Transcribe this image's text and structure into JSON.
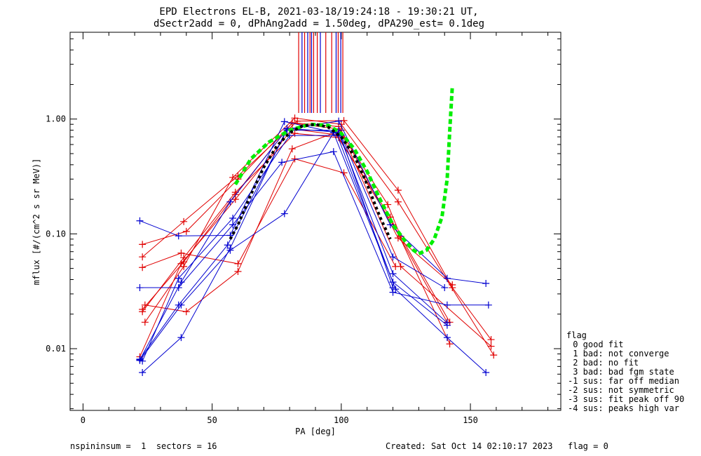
{
  "chart_data": {
    "type": "line",
    "title": "EPD Electrons EL-B, 2021-03-18/19:24:18 - 19:30:21 UT,",
    "subtitle": "dSectr2add = 0, dPhAng2add = 1.50deg, dPA290_est=   0.1deg",
    "xlabel": "PA [deg]",
    "ylabel": "mflux [#/(cm^2 s sr MeV)]",
    "xlim": [
      -5,
      185
    ],
    "ylim": [
      0.0029,
      5.7
    ],
    "yscale": "log",
    "x_ticks": [
      0,
      50,
      100,
      150
    ],
    "x_tick_labels": [
      "0",
      "50",
      "100",
      "150"
    ],
    "y_ticks": [
      0.01,
      0.1,
      1.0
    ],
    "y_tick_labels": [
      "0.01",
      "0.10",
      "1.00"
    ],
    "grid": false,
    "legend_title": "flag",
    "legend": [
      " 0 good fit",
      " 1 bad: not converge",
      " 2 bad: no fit",
      " 3 bad: bad fgm state",
      "-1 sus: far off median",
      "-2 sus: not symmetric",
      "-3 sus: fit peak off 90",
      "-4 sus: peaks high var"
    ],
    "colors": {
      "red": "#e00000",
      "blue": "#0000d0",
      "green": "#00ee00",
      "black": "#000000"
    },
    "series": [
      {
        "color": "#e00000",
        "points": [
          [
            23,
            0.081
          ],
          [
            40,
            0.105
          ],
          [
            60,
            0.3
          ],
          [
            81,
            0.92
          ],
          [
            99,
            0.82
          ],
          [
            118,
            0.18
          ],
          [
            123,
            0.095
          ],
          [
            142,
            0.017
          ]
        ]
      },
      {
        "color": "#e00000",
        "points": [
          [
            23,
            0.063
          ],
          [
            39,
            0.128
          ],
          [
            60,
            0.32
          ],
          [
            83,
            0.96
          ],
          [
            101,
            0.97
          ],
          [
            122,
            0.24
          ],
          [
            143,
            0.034
          ],
          [
            158,
            0.012
          ]
        ]
      },
      {
        "color": "#e00000",
        "points": [
          [
            22,
            0.0085
          ],
          [
            38,
            0.055
          ],
          [
            59,
            0.2
          ],
          [
            81,
            0.82
          ],
          [
            98,
            0.73
          ],
          [
            119,
            0.14
          ],
          [
            142,
            0.011
          ]
        ]
      },
      {
        "color": "#e00000",
        "points": [
          [
            23,
            0.021
          ],
          [
            39,
            0.062
          ],
          [
            59,
            0.23
          ],
          [
            82,
            0.75
          ],
          [
            99,
            0.69
          ],
          [
            120,
            0.12
          ],
          [
            141,
            0.017
          ]
        ]
      },
      {
        "color": "#e00000",
        "points": [
          [
            24,
            0.024
          ],
          [
            40,
            0.021
          ],
          [
            60,
            0.047
          ],
          [
            81,
            0.55
          ],
          [
            100,
            0.8
          ],
          [
            122,
            0.092
          ],
          [
            143,
            0.036
          ]
        ]
      },
      {
        "color": "#e00000",
        "points": [
          [
            23,
            0.051
          ],
          [
            38,
            0.068
          ],
          [
            60,
            0.055
          ],
          [
            82,
            0.45
          ],
          [
            101,
            0.34
          ],
          [
            121,
            0.052
          ]
        ]
      },
      {
        "color": "#e00000",
        "points": [
          [
            24,
            0.017
          ],
          [
            39,
            0.052
          ],
          [
            58,
            0.31
          ],
          [
            82,
            1.02
          ],
          [
            100,
            0.9
          ],
          [
            122,
            0.19
          ],
          [
            159,
            0.0088
          ]
        ]
      },
      {
        "color": "#e00000",
        "points": [
          [
            23,
            0.022
          ],
          [
            39,
            0.057
          ],
          [
            59,
            0.22
          ],
          [
            81,
            0.93
          ],
          [
            99,
            0.86
          ],
          [
            123,
            0.052
          ],
          [
            158,
            0.0105
          ]
        ]
      },
      {
        "color": "#0000d0",
        "points": [
          [
            22,
            0.13
          ],
          [
            37,
            0.096
          ],
          [
            57,
            0.097
          ],
          [
            78,
            0.95
          ],
          [
            99,
            0.75
          ],
          [
            120,
            0.045
          ],
          [
            141,
            0.0168
          ]
        ]
      },
      {
        "color": "#0000d0",
        "points": [
          [
            23,
            0.0062
          ],
          [
            38,
            0.0125
          ],
          [
            57,
            0.075
          ],
          [
            79,
            0.83
          ],
          [
            98,
            0.77
          ],
          [
            121,
            0.033
          ],
          [
            141,
            0.0125
          ],
          [
            156,
            0.0062
          ]
        ]
      },
      {
        "color": "#0000d0",
        "points": [
          [
            22,
            0.034
          ],
          [
            37,
            0.034
          ],
          [
            58,
            0.12
          ],
          [
            77,
            0.42
          ],
          [
            97,
            0.52
          ],
          [
            120,
            0.031
          ],
          [
            141,
            0.024
          ],
          [
            157,
            0.024
          ]
        ]
      },
      {
        "color": "#0000d0",
        "points": [
          [
            22,
            0.008
          ],
          [
            38,
            0.038
          ],
          [
            57,
            0.19
          ],
          [
            79,
            0.82
          ],
          [
            99,
            0.96
          ],
          [
            119,
            0.12
          ],
          [
            141,
            0.041
          ],
          [
            156,
            0.037
          ]
        ]
      },
      {
        "color": "#0000d0",
        "points": [
          [
            23,
            0.0078
          ],
          [
            37,
            0.041
          ],
          [
            58,
            0.137
          ],
          [
            80,
            0.72
          ],
          [
            100,
            0.72
          ],
          [
            120,
            0.063
          ],
          [
            140,
            0.034
          ]
        ]
      },
      {
        "color": "#0000d0",
        "points": [
          [
            22,
            0.0079
          ],
          [
            38,
            0.024
          ],
          [
            57,
            0.072
          ],
          [
            78,
            0.15
          ],
          [
            97,
            0.76
          ],
          [
            120,
            0.038
          ],
          [
            141,
            0.016
          ]
        ]
      },
      {
        "color": "#0000d0",
        "points": [
          [
            22,
            0.0081
          ],
          [
            37,
            0.024
          ],
          [
            56,
            0.08
          ],
          [
            79,
            0.8
          ],
          [
            99,
            0.8
          ],
          [
            120,
            0.034
          ]
        ]
      }
    ],
    "fit_black": [
      [
        57,
        0.09
      ],
      [
        60,
        0.12
      ],
      [
        65,
        0.22
      ],
      [
        70,
        0.38
      ],
      [
        75,
        0.58
      ],
      [
        80,
        0.76
      ],
      [
        85,
        0.87
      ],
      [
        90,
        0.9
      ],
      [
        95,
        0.85
      ],
      [
        100,
        0.7
      ],
      [
        105,
        0.48
      ],
      [
        110,
        0.27
      ],
      [
        115,
        0.14
      ],
      [
        119,
        0.09
      ]
    ],
    "fit_green": [
      [
        59,
        0.27
      ],
      [
        65,
        0.45
      ],
      [
        72,
        0.63
      ],
      [
        80,
        0.8
      ],
      [
        88,
        0.9
      ],
      [
        95,
        0.88
      ],
      [
        100,
        0.75
      ],
      [
        105,
        0.55
      ],
      [
        110,
        0.35
      ],
      [
        115,
        0.2
      ],
      [
        120,
        0.12
      ],
      [
        125,
        0.085
      ],
      [
        128,
        0.072
      ],
      [
        130,
        0.067
      ],
      [
        133,
        0.072
      ],
      [
        136,
        0.09
      ],
      [
        139,
        0.14
      ],
      [
        141,
        0.3
      ],
      [
        142,
        0.8
      ],
      [
        143,
        1.95
      ]
    ],
    "pitch_markers": [
      {
        "x": 83.5,
        "color": "#e00000"
      },
      {
        "x": 84.8,
        "color": "#0000d0"
      },
      {
        "x": 85.8,
        "color": "#e00000"
      },
      {
        "x": 87.0,
        "color": "#0000d0"
      },
      {
        "x": 87.9,
        "color": "#e00000"
      },
      {
        "x": 88.5,
        "color": "#0000d0"
      },
      {
        "x": 89.3,
        "color": "#e00000"
      },
      {
        "x": 90.7,
        "color": "#e00000"
      },
      {
        "x": 91.9,
        "color": "#0000d0"
      },
      {
        "x": 94.0,
        "color": "#e00000"
      },
      {
        "x": 96.3,
        "color": "#e00000"
      },
      {
        "x": 98.0,
        "color": "#0000d0"
      },
      {
        "x": 98.8,
        "color": "#e00000"
      },
      {
        "x": 99.8,
        "color": "#0000d0"
      },
      {
        "x": 100.6,
        "color": "#e00000"
      }
    ]
  },
  "footer": {
    "left": "nspininsum =  1  sectors = 16",
    "created": "Created: Sat Oct 14 02:10:17 2023",
    "flag": "flag = 0"
  }
}
